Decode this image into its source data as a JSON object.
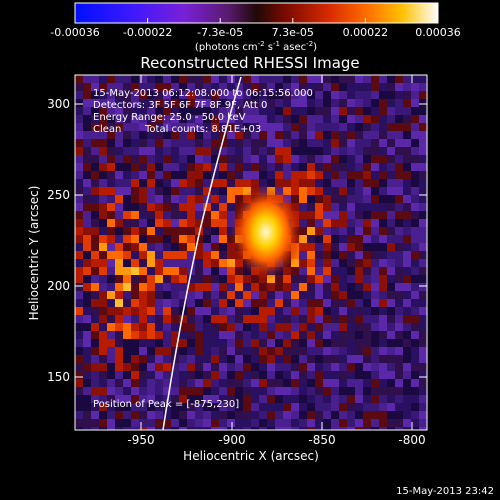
{
  "colorbar": {
    "tick_labels": [
      "-0.00036",
      "-0.00022",
      "-7.3e-05",
      "7.3e-05",
      "0.00022",
      "0.00036"
    ],
    "units_main": "(photons cm",
    "units_sup1": "-2",
    "units_mid": " s",
    "units_sup2": "-1",
    "units_mid2": " asec",
    "units_sup3": "-2",
    "units_end": ")"
  },
  "plot": {
    "title": "Reconstructed RHESSI Image",
    "time_range": "15-May-2013 06:12:08.000 to 06:15:56.000",
    "detectors": "Detectors: 3F 5F 6F 7F 8F 9F, Att 0",
    "energy_range": "Energy Range: 25.0 - 50.0 keV",
    "algorithm": "Clean",
    "total_counts": "Total counts: 8.81E+03",
    "peak_position": "Position of Peak = [-875,230]",
    "xlabel": "Heliocentric X (arcsec)",
    "ylabel": "Heliocentric Y (arcsec)",
    "x_ticks": [
      "-950",
      "-900",
      "-850",
      "-800"
    ],
    "y_ticks": [
      "150",
      "200",
      "250",
      "300"
    ]
  },
  "footer_timestamp": "15-May-2013 23:42"
}
